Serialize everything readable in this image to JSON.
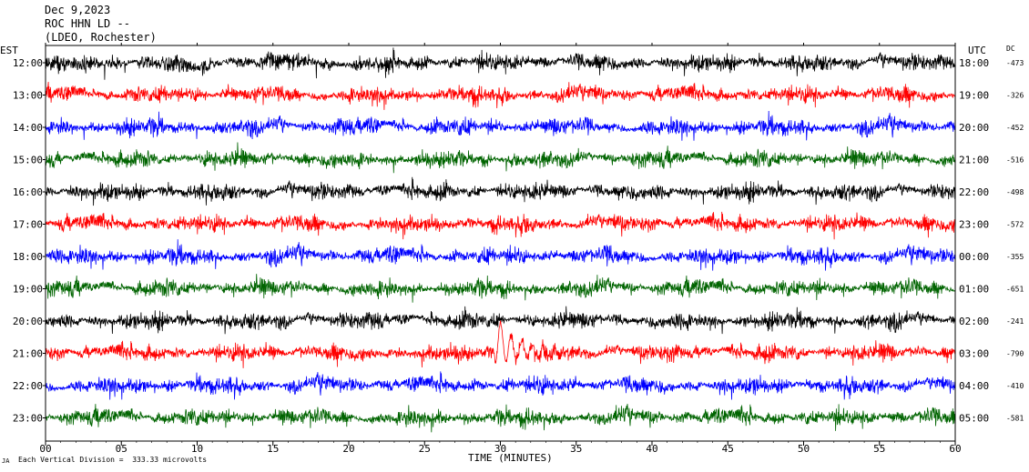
{
  "header": {
    "date": "Dec 9,2023",
    "station": "ROC HHN LD --",
    "network": "(LDEO, Rochester)"
  },
  "footer": {
    "corner_mark": "JA",
    "vertical_division": "Each Vertical Division =  333.33 microvolts"
  },
  "chart_data": {
    "type": "line",
    "title": "",
    "xlabel": "TIME (MINUTES)",
    "ylabel_left": "EST",
    "ylabel_right": "UTC",
    "dc_label": "DC",
    "xlim": [
      0,
      60
    ],
    "x_ticks": [
      "00",
      "05",
      "10",
      "15",
      "20",
      "25",
      "30",
      "35",
      "40",
      "45",
      "50",
      "55",
      "60"
    ],
    "trace_colors": [
      "#000000",
      "#ff0000",
      "#0000ff",
      "#006400"
    ],
    "rows": [
      {
        "est": "12:00",
        "utc": "18:00",
        "dc": "-473"
      },
      {
        "est": "13:00",
        "utc": "19:00",
        "dc": "-326"
      },
      {
        "est": "14:00",
        "utc": "20:00",
        "dc": "-452"
      },
      {
        "est": "15:00",
        "utc": "21:00",
        "dc": "-516"
      },
      {
        "est": "16:00",
        "utc": "22:00",
        "dc": "-498"
      },
      {
        "est": "17:00",
        "utc": "23:00",
        "dc": "-572"
      },
      {
        "est": "18:00",
        "utc": "00:00",
        "dc": "-355"
      },
      {
        "est": "19:00",
        "utc": "01:00",
        "dc": "-651"
      },
      {
        "est": "20:00",
        "utc": "02:00",
        "dc": "-241"
      },
      {
        "est": "21:00",
        "utc": "03:00",
        "dc": "-790"
      },
      {
        "est": "22:00",
        "utc": "04:00",
        "dc": "-410"
      },
      {
        "est": "23:00",
        "utc": "05:00",
        "dc": "-581"
      }
    ],
    "events": [
      {
        "row": 9,
        "minute": 29.5,
        "note": "local event arrival"
      }
    ]
  }
}
